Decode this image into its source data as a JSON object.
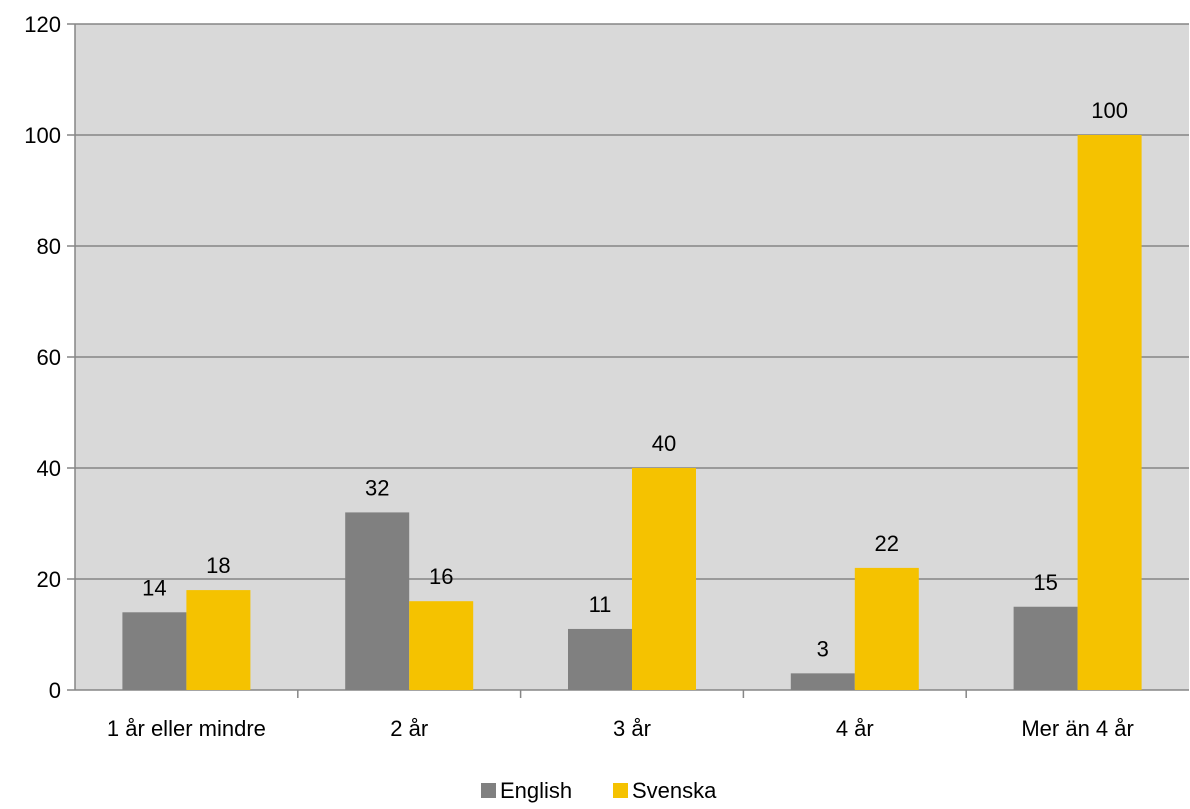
{
  "chart_data": {
    "type": "bar",
    "categories": [
      "1 år eller mindre",
      "2 år",
      "3 år",
      "4 år",
      "Mer än 4 år"
    ],
    "series": [
      {
        "name": "English",
        "values": [
          14,
          32,
          11,
          3,
          15
        ],
        "color": "#808080"
      },
      {
        "name": "Svenska",
        "values": [
          18,
          16,
          40,
          22,
          100
        ],
        "color": "#F5C200"
      }
    ],
    "ylim": [
      0,
      120
    ],
    "yticks": [
      0,
      20,
      40,
      60,
      80,
      100,
      120
    ],
    "grid": true,
    "legend": "bottom",
    "plot_background": "#D9D9D9",
    "gridline_color": "#868686"
  }
}
